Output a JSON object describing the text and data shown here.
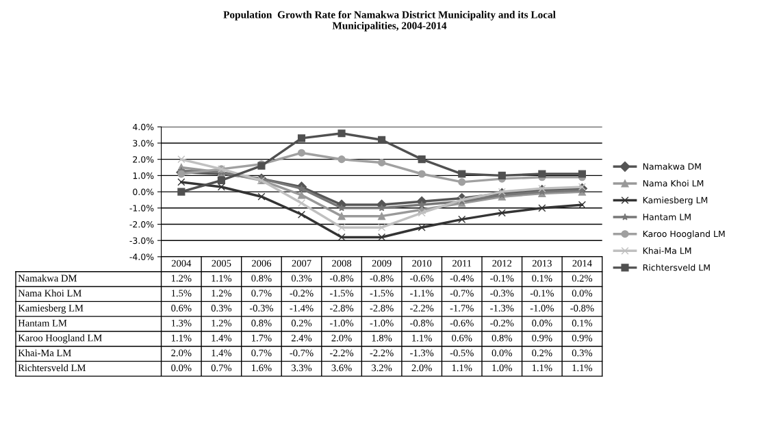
{
  "chart_data": {
    "type": "line",
    "title": "Population  Growth Rate for Namakwa District Municipality and its Local\nMunicipalities, 2004-2014",
    "categories": [
      "2004",
      "2005",
      "2006",
      "2007",
      "2008",
      "2009",
      "2010",
      "2011",
      "2012",
      "2013",
      "2014"
    ],
    "ylim": [
      -4,
      4
    ],
    "yticks": [
      {
        "value": -4,
        "label": "-4.0%"
      },
      {
        "value": -3,
        "label": "-3.0%"
      },
      {
        "value": -2,
        "label": "-2.0%"
      },
      {
        "value": -1,
        "label": "-1.0%"
      },
      {
        "value": 0,
        "label": "0.0%"
      },
      {
        "value": 1,
        "label": "1.0%"
      },
      {
        "value": 2,
        "label": "2.0%"
      },
      {
        "value": 3,
        "label": "3.0%"
      },
      {
        "value": 4,
        "label": "4.0%"
      }
    ],
    "grid": "y",
    "legend": "right",
    "series": [
      {
        "name": "Namakwa DM",
        "color": "#555555",
        "marker": "diamond",
        "values": [
          1.2,
          1.1,
          0.8,
          0.3,
          -0.8,
          -0.8,
          -0.6,
          -0.4,
          -0.1,
          0.1,
          0.2
        ],
        "value_labels": [
          "1.2%",
          "1.1%",
          "0.8%",
          "0.3%",
          "-0.8%",
          "-0.8%",
          "-0.6%",
          "-0.4%",
          "-0.1%",
          "0.1%",
          "0.2%"
        ]
      },
      {
        "name": "Nama Khoi LM",
        "color": "#999999",
        "marker": "triangle",
        "values": [
          1.5,
          1.2,
          0.7,
          -0.2,
          -1.5,
          -1.5,
          -1.1,
          -0.7,
          -0.3,
          -0.1,
          0.0
        ],
        "value_labels": [
          "1.5%",
          "1.2%",
          "0.7%",
          "-0.2%",
          "-1.5%",
          "-1.5%",
          "-1.1%",
          "-0.7%",
          "-0.3%",
          "-0.1%",
          "0.0%"
        ]
      },
      {
        "name": "Kamiesberg LM",
        "color": "#333333",
        "marker": "cross",
        "values": [
          0.6,
          0.3,
          -0.3,
          -1.4,
          -2.8,
          -2.8,
          -2.2,
          -1.7,
          -1.3,
          -1.0,
          -0.8
        ],
        "value_labels": [
          "0.6%",
          "0.3%",
          "-0.3%",
          "-1.4%",
          "-2.8%",
          "-2.8%",
          "-2.2%",
          "-1.7%",
          "-1.3%",
          "-1.0%",
          "-0.8%"
        ]
      },
      {
        "name": "Hantam LM",
        "color": "#777777",
        "marker": "star",
        "values": [
          1.3,
          1.2,
          0.8,
          0.2,
          -1.0,
          -1.0,
          -0.8,
          -0.6,
          -0.2,
          0.0,
          0.1
        ],
        "value_labels": [
          "1.3%",
          "1.2%",
          "0.8%",
          "0.2%",
          "-1.0%",
          "-1.0%",
          "-0.8%",
          "-0.6%",
          "-0.2%",
          "0.0%",
          "0.1%"
        ]
      },
      {
        "name": "Karoo Hoogland LM",
        "color": "#a0a0a0",
        "marker": "circle",
        "values": [
          1.1,
          1.4,
          1.7,
          2.4,
          2.0,
          1.8,
          1.1,
          0.6,
          0.8,
          0.9,
          0.9
        ],
        "value_labels": [
          "1.1%",
          "1.4%",
          "1.7%",
          "2.4%",
          "2.0%",
          "1.8%",
          "1.1%",
          "0.6%",
          "0.8%",
          "0.9%",
          "0.9%"
        ]
      },
      {
        "name": "Khai-Ma LM",
        "color": "#c0c0c0",
        "marker": "cross",
        "values": [
          2.0,
          1.4,
          0.7,
          -0.7,
          -2.2,
          -2.2,
          -1.3,
          -0.5,
          0.0,
          0.2,
          0.3
        ],
        "value_labels": [
          "2.0%",
          "1.4%",
          "0.7%",
          "-0.7%",
          "-2.2%",
          "-2.2%",
          "-1.3%",
          "-0.5%",
          "0.0%",
          "0.2%",
          "0.3%"
        ]
      },
      {
        "name": "Richtersveld LM",
        "color": "#505050",
        "marker": "square",
        "values": [
          0.0,
          0.7,
          1.6,
          3.3,
          3.6,
          3.2,
          2.0,
          1.1,
          1.0,
          1.1,
          1.1
        ],
        "value_labels": [
          "0.0%",
          "0.7%",
          "1.6%",
          "3.3%",
          "3.6%",
          "3.2%",
          "2.0%",
          "1.1%",
          "1.0%",
          "1.1%",
          "1.1%"
        ]
      }
    ]
  }
}
